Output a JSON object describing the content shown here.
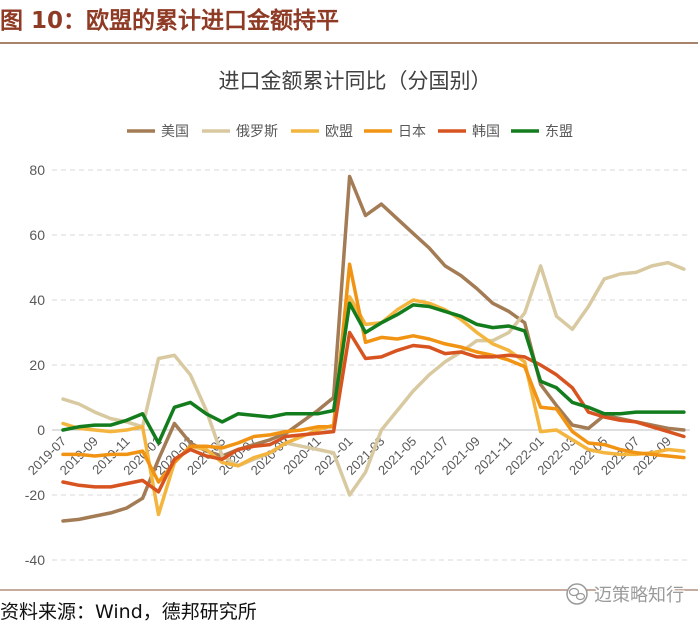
{
  "figure": {
    "caption": "图 10：欧盟的累计进口金额持平",
    "source": "资料来源：Wind，德邦研究所",
    "watermark": "迈策略知行",
    "watermark_icon": "wechat-icon",
    "caption_color": "#8F3A24",
    "rule_color": "#8B5A3C"
  },
  "chart_data": {
    "type": "line",
    "title": "进口金额累计同比（分国别）",
    "xlabel": "",
    "ylabel": "",
    "ylim": [
      -40,
      80
    ],
    "yticks": [
      80,
      60,
      40,
      20,
      0,
      -20,
      -40
    ],
    "grid": true,
    "legend": "top",
    "x_tick_labels": [
      "2019-07",
      "2019-09",
      "2019-11",
      "2020-01",
      "2020-03",
      "2020-05",
      "2020-07",
      "2020-09",
      "2020-11",
      "2021-01",
      "2021-03",
      "2021-05",
      "2021-07",
      "2021-09",
      "2021-11",
      "2022-01",
      "2022-03",
      "2022-05",
      "2022-07",
      "2022-09"
    ],
    "series": [
      {
        "name": "美国",
        "color": "#A37C55",
        "values": [
          -28,
          -27.5,
          -26.5,
          -25.5,
          -24,
          -21,
          -9,
          2,
          -4,
          -6.5,
          -8,
          -6,
          -4.5,
          -3,
          -1,
          2.5,
          6,
          10,
          78,
          66,
          69.5,
          65,
          60.5,
          56,
          50.5,
          47.5,
          43.5,
          39,
          36.5,
          33,
          14,
          7.5,
          1.5,
          0.5,
          4.5,
          3.5,
          2.5,
          1.5,
          0.5,
          0
        ]
      },
      {
        "name": "俄罗斯",
        "color": "#D8C9A0",
        "values": [
          9.5,
          8,
          5.5,
          3.5,
          2.5,
          1,
          22,
          23,
          17,
          6,
          -8,
          -11,
          -9,
          -7,
          -4,
          -5,
          -6,
          -7,
          -20,
          -13,
          0,
          6,
          12,
          17,
          21,
          24,
          27.5,
          27.5,
          30,
          36,
          50.5,
          35,
          31,
          38,
          46.5,
          48,
          48.5,
          50.5,
          51.5,
          49.5
        ]
      },
      {
        "name": "欧盟",
        "color": "#F4B53F",
        "values": [
          2,
          0.5,
          0,
          -0.5,
          0,
          1,
          -26,
          -10,
          -5,
          -6,
          -10,
          -11,
          -8.5,
          -7,
          -4,
          -2,
          0,
          1.5,
          41,
          32.5,
          33,
          37,
          40,
          39,
          37,
          34,
          30,
          26.5,
          24.5,
          21,
          -0.5,
          0,
          -3,
          -6,
          -7,
          -7.5,
          -7.5,
          -7,
          -6,
          -6.5
        ]
      },
      {
        "name": "日本",
        "color": "#F29413",
        "values": [
          -7.5,
          -7.5,
          -8,
          -7.5,
          -7.5,
          -6.5,
          -16,
          -10,
          -5,
          -5,
          -5.5,
          -4,
          -2,
          -1.5,
          -0.5,
          0,
          1,
          1,
          51,
          27,
          28.5,
          28,
          29,
          28,
          26.5,
          25.5,
          24,
          23,
          21.5,
          19.5,
          7,
          6.5,
          -0.5,
          -4,
          -4.5,
          -6,
          -7,
          -7.5,
          -8,
          -8.5
        ]
      },
      {
        "name": "韩国",
        "color": "#D75421",
        "values": [
          -16,
          -17,
          -17.5,
          -17.5,
          -16.5,
          -15.5,
          -19,
          -9,
          -6,
          -8,
          -9,
          -6,
          -5,
          -4.5,
          -2,
          -1.5,
          -1,
          -0.5,
          30,
          22,
          22.5,
          24.5,
          26,
          25.5,
          23.5,
          24,
          22.5,
          22.5,
          23,
          22.5,
          20,
          17,
          13,
          5.5,
          4,
          3,
          2.5,
          1,
          -0.5,
          -2
        ]
      },
      {
        "name": "东盟",
        "color": "#137D1E",
        "values": [
          0,
          1,
          1.5,
          1.5,
          3,
          5,
          -4,
          7,
          8.5,
          5,
          2.5,
          5,
          4.5,
          4,
          5,
          5,
          5,
          6,
          39,
          30,
          33,
          35.5,
          38.5,
          38,
          36.5,
          35,
          32.5,
          31.5,
          32,
          30.5,
          15,
          13,
          8.5,
          7,
          5,
          5,
          5.5,
          5.5,
          5.5,
          5.5
        ]
      }
    ]
  }
}
